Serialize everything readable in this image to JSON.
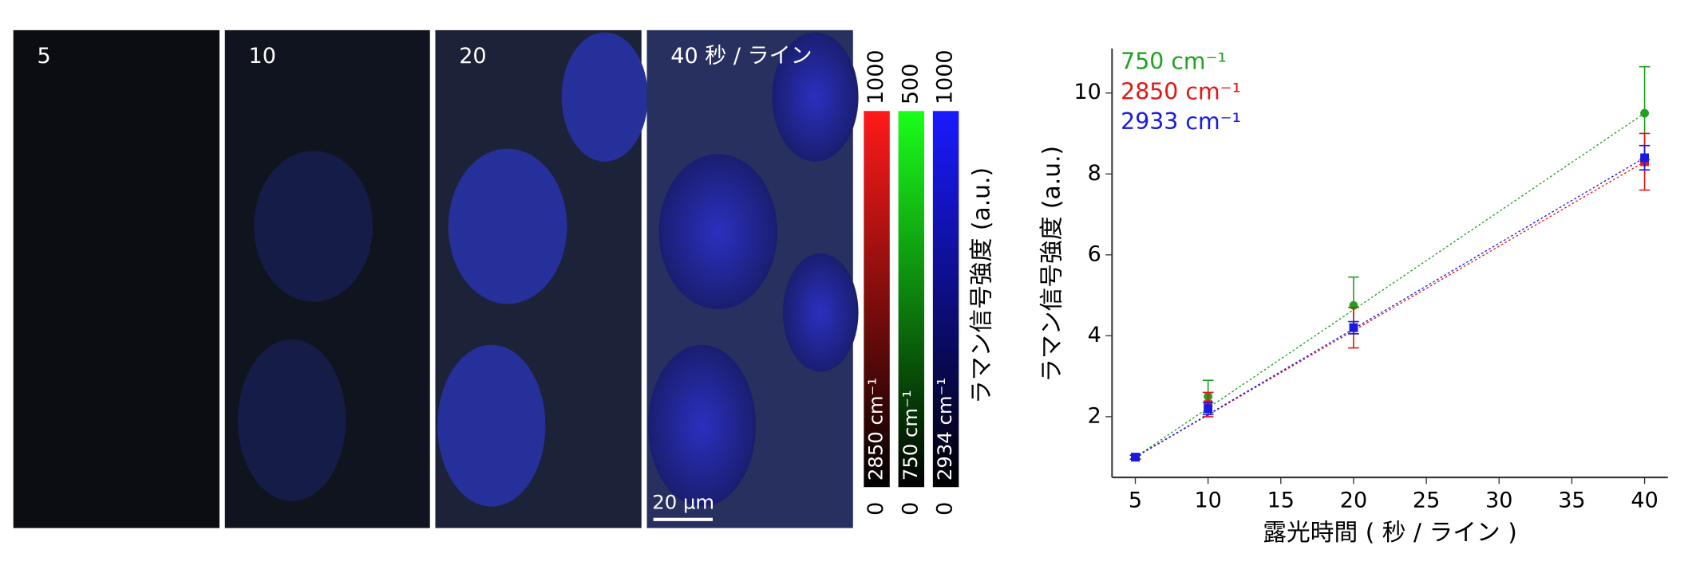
{
  "figure": {
    "panels": [
      "5",
      "10",
      "20",
      "40 秒 / ライン"
    ],
    "scale_bar": "20 µm",
    "colorbar_axis_label": "ラマン信号強度 (a.u.)",
    "colorbars": [
      {
        "label": "2850 cm⁻¹",
        "max": 1000,
        "min": 0,
        "color": "#ff1a1a"
      },
      {
        "label": "750 cm⁻¹",
        "max": 500,
        "min": 0,
        "color": "#1aff1a"
      },
      {
        "label": "2934 cm⁻¹",
        "max": 1000,
        "min": 0,
        "color": "#1a1aff"
      }
    ]
  },
  "chart_data": {
    "type": "scatter",
    "x_label": "露光時間 ( 秒 / ライン )",
    "y_label": "ラマン信号強度 (a.u.)",
    "x": [
      5,
      10,
      20,
      40
    ],
    "xlim": [
      3.4,
      41.6
    ],
    "ylim": [
      0.5,
      11.1
    ],
    "xticks": [
      5,
      10,
      15,
      20,
      25,
      30,
      35,
      40
    ],
    "yticks": [
      2,
      4,
      6,
      8,
      10
    ],
    "series": [
      {
        "name": "750 cm⁻¹",
        "color": "#22a022",
        "marker": "circle",
        "values": [
          1.0,
          2.5,
          4.75,
          9.5
        ],
        "errors": [
          0.05,
          0.4,
          0.7,
          1.15
        ]
      },
      {
        "name": "2850 cm⁻¹",
        "color": "#e01818",
        "marker": "square",
        "values": [
          1.0,
          2.3,
          4.2,
          8.3
        ],
        "errors": [
          0.05,
          0.3,
          0.5,
          0.7
        ]
      },
      {
        "name": "2933 cm⁻¹",
        "color": "#1a1ae0",
        "marker": "square",
        "values": [
          1.0,
          2.2,
          4.2,
          8.4
        ],
        "errors": [
          0.05,
          0.15,
          0.15,
          0.3
        ]
      }
    ]
  }
}
